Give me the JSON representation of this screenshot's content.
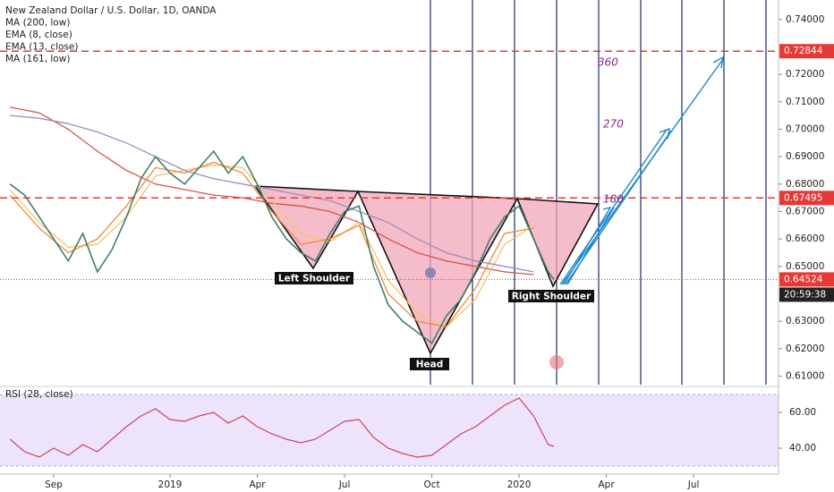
{
  "chart_data": {
    "type": "line",
    "ylim": [
      0.6069,
      0.7471
    ],
    "xlim": [
      -1.846,
      24.92
    ],
    "yticks": [
      {
        "value": 0.74,
        "label": "0.74000"
      },
      {
        "value": 0.72,
        "label": "0.72000"
      },
      {
        "value": 0.71,
        "label": "0.71000"
      },
      {
        "value": 0.7,
        "label": "0.70000"
      },
      {
        "value": 0.69,
        "label": "0.69000"
      },
      {
        "value": 0.68,
        "label": "0.68000"
      },
      {
        "value": 0.67,
        "label": "0.67000"
      },
      {
        "value": 0.66,
        "label": "0.66000"
      },
      {
        "value": 0.65,
        "label": "0.65000"
      },
      {
        "value": 0.63,
        "label": "0.63000"
      },
      {
        "value": 0.62,
        "label": "0.62000"
      },
      {
        "value": 0.61,
        "label": "0.61000"
      }
    ],
    "xticks": [
      {
        "value": 0,
        "label": "Sep"
      },
      {
        "value": 4,
        "label": "2019"
      },
      {
        "value": 7,
        "label": "Apr"
      },
      {
        "value": 10,
        "label": "Jul"
      },
      {
        "value": 13,
        "label": "Oct"
      },
      {
        "value": 16,
        "label": "2020"
      },
      {
        "value": 19,
        "label": "Apr"
      },
      {
        "value": 22,
        "label": "Jul"
      }
    ],
    "price_lines": [
      {
        "value": 0.72844,
        "label": "0.72844"
      },
      {
        "value": 0.67495,
        "label": "0.67495"
      }
    ],
    "last_price": {
      "value": 0.64524,
      "label": "0.64524"
    },
    "countdown": "20:59:38",
    "series": [
      {
        "name": "New Zealand Dollar / U.S. Dollar, 1D, OANDA",
        "color": "#3f7f6c",
        "x": [
          -1.5,
          -1,
          -0.5,
          0,
          0.5,
          1,
          1.5,
          2,
          2.5,
          3,
          3.5,
          4,
          4.5,
          5,
          5.5,
          6,
          6.5,
          7,
          7.5,
          8,
          8.5,
          9,
          9.5,
          10,
          10.5,
          11,
          11.5,
          12,
          12.5,
          13,
          13.5,
          14,
          14.5,
          15,
          15.5,
          16,
          16.5,
          17,
          17.2
        ],
        "values": [
          0.68,
          0.676,
          0.668,
          0.66,
          0.652,
          0.662,
          0.648,
          0.656,
          0.668,
          0.682,
          0.69,
          0.684,
          0.68,
          0.686,
          0.692,
          0.684,
          0.69,
          0.68,
          0.668,
          0.66,
          0.655,
          0.652,
          0.662,
          0.67,
          0.672,
          0.65,
          0.636,
          0.63,
          0.626,
          0.622,
          0.632,
          0.638,
          0.648,
          0.66,
          0.668,
          0.672,
          0.66,
          0.648,
          0.6452
        ]
      },
      {
        "name": "MA (200, low)",
        "color": "#9c8dc1",
        "x": [
          -1.5,
          -0.5,
          0.5,
          1.5,
          2.5,
          3.5,
          4.5,
          5.5,
          6.5,
          7.5,
          8.5,
          9.5,
          10.5,
          11.5,
          12.5,
          13.5,
          14.5,
          15.5,
          16.5
        ],
        "values": [
          0.705,
          0.704,
          0.702,
          0.699,
          0.695,
          0.69,
          0.685,
          0.682,
          0.68,
          0.678,
          0.676,
          0.674,
          0.67,
          0.666,
          0.66,
          0.655,
          0.652,
          0.65,
          0.648
        ]
      },
      {
        "name": "EMA (8, close)",
        "color": "#f08a3c",
        "x": [
          -1.5,
          -0.5,
          0.5,
          1.5,
          2.5,
          3.5,
          4.5,
          5.5,
          6.5,
          7.5,
          8.5,
          9.5,
          10.5,
          11.5,
          12.5,
          13.5,
          14.5,
          15.5,
          16.5
        ],
        "values": [
          0.676,
          0.664,
          0.655,
          0.66,
          0.672,
          0.686,
          0.684,
          0.688,
          0.684,
          0.67,
          0.658,
          0.66,
          0.665,
          0.64,
          0.63,
          0.628,
          0.642,
          0.662,
          0.664
        ]
      },
      {
        "name": "EMA (13, close)",
        "color": "#f5c36a",
        "x": [
          -1.5,
          -0.5,
          0.5,
          1.5,
          2.5,
          3.5,
          4.5,
          5.5,
          6.5,
          7.5,
          8.5,
          9.5,
          10.5,
          11.5,
          12.5,
          13.5,
          14.5,
          15.5,
          16.5
        ],
        "values": [
          0.678,
          0.666,
          0.657,
          0.658,
          0.668,
          0.683,
          0.685,
          0.687,
          0.686,
          0.674,
          0.662,
          0.659,
          0.666,
          0.645,
          0.633,
          0.628,
          0.638,
          0.658,
          0.665
        ]
      },
      {
        "name": "MA (161, low)",
        "color": "#d9534f",
        "x": [
          -1.5,
          -0.5,
          0.5,
          1.5,
          2.5,
          3.5,
          4.5,
          5.5,
          6.5,
          7.5,
          8.5,
          9.5,
          10.5,
          11.5,
          12.5,
          13.5,
          14.5,
          15.5,
          16.5
        ],
        "values": [
          0.708,
          0.706,
          0.7,
          0.692,
          0.685,
          0.68,
          0.678,
          0.676,
          0.675,
          0.673,
          0.672,
          0.67,
          0.666,
          0.66,
          0.655,
          0.652,
          0.65,
          0.648,
          0.647
        ]
      }
    ],
    "annotations": [
      "Left Shoulder",
      "Head",
      "Right Shoulder",
      "180",
      "270",
      "360"
    ],
    "rsi": {
      "name": "RSI (28, close)",
      "color": "#d0445c",
      "ylim": [
        28,
        73
      ],
      "band": [
        30,
        70
      ],
      "yticks": [
        {
          "value": 60,
          "label": "60.00"
        },
        {
          "value": 40,
          "label": "40.00"
        }
      ],
      "x": [
        -1.5,
        -1,
        -0.5,
        0,
        0.5,
        1,
        1.5,
        2,
        2.5,
        3,
        3.5,
        4,
        4.5,
        5,
        5.5,
        6,
        6.5,
        7,
        7.5,
        8,
        8.5,
        9,
        9.5,
        10,
        10.5,
        11,
        11.5,
        12,
        12.5,
        13,
        13.5,
        14,
        14.5,
        15,
        15.5,
        16,
        16.5,
        17,
        17.2
      ],
      "values": [
        45,
        38,
        35,
        40,
        36,
        42,
        38,
        45,
        52,
        58,
        62,
        56,
        55,
        58,
        60,
        54,
        58,
        52,
        48,
        45,
        43,
        45,
        50,
        55,
        56,
        46,
        40,
        37,
        35,
        36,
        42,
        48,
        52,
        58,
        64,
        68,
        58,
        42,
        41
      ]
    }
  }
}
